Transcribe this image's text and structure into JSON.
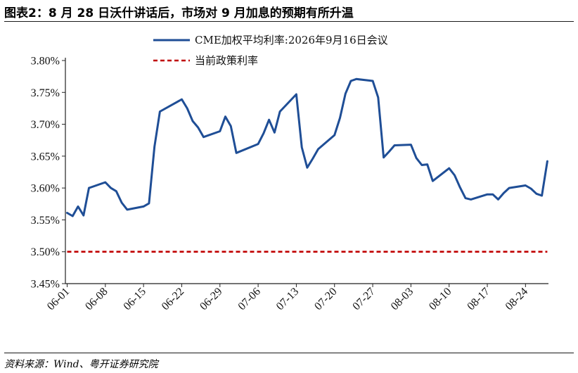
{
  "header": {
    "title": "图表2：8 月 28 日沃什讲话后，市场对 9 月加息的预期有所升温"
  },
  "footer": {
    "source": "资料来源：Wind、粤开证券研究院"
  },
  "colors": {
    "cme_line": "#1f4e96",
    "policy_line": "#c00000",
    "axis": "#222222"
  },
  "chart_data": {
    "type": "line",
    "title": "",
    "xlabel": "",
    "ylabel": "",
    "ylim": [
      3.45,
      3.8
    ],
    "yticks": [
      3.45,
      3.5,
      3.55,
      3.6,
      3.65,
      3.7,
      3.75,
      3.8
    ],
    "ytick_labels": [
      "3.45%",
      "3.50%",
      "3.55%",
      "3.60%",
      "3.65%",
      "3.70%",
      "3.75%",
      "3.80%"
    ],
    "xtick_labels": [
      "06-01",
      "06-08",
      "06-15",
      "06-22",
      "06-29",
      "07-06",
      "07-13",
      "07-20",
      "07-27",
      "08-03",
      "08-10",
      "08-17",
      "08-24"
    ],
    "legend_position": "top-center",
    "grid": false,
    "series": [
      {
        "name": "CME加权平均利率:2026年9月16日会议",
        "style": "solid",
        "x": [
          "06-01",
          "06-02",
          "06-03",
          "06-04",
          "06-05",
          "06-08",
          "06-09",
          "06-10",
          "06-11",
          "06-12",
          "06-15",
          "06-16",
          "06-17",
          "06-18",
          "06-22",
          "06-23",
          "06-24",
          "06-25",
          "06-26",
          "06-29",
          "06-30",
          "07-01",
          "07-02",
          "07-06",
          "07-07",
          "07-08",
          "07-09",
          "07-10",
          "07-13",
          "07-14",
          "07-15",
          "07-16",
          "07-17",
          "07-20",
          "07-21",
          "07-22",
          "07-23",
          "07-24",
          "07-27",
          "07-28",
          "07-29",
          "07-30",
          "07-31",
          "08-03",
          "08-04",
          "08-05",
          "08-06",
          "08-07",
          "08-10",
          "08-11",
          "08-12",
          "08-13",
          "08-14",
          "08-17",
          "08-18",
          "08-19",
          "08-20",
          "08-21",
          "08-24",
          "08-25",
          "08-26",
          "08-27",
          "08-28"
        ],
        "values": [
          3.561,
          3.556,
          3.571,
          3.557,
          3.6,
          3.609,
          3.6,
          3.595,
          3.577,
          3.566,
          3.571,
          3.576,
          3.665,
          3.72,
          3.739,
          3.725,
          3.705,
          3.695,
          3.68,
          3.689,
          3.712,
          3.697,
          3.655,
          3.669,
          3.686,
          3.707,
          3.687,
          3.72,
          3.747,
          3.664,
          3.632,
          3.646,
          3.661,
          3.683,
          3.71,
          3.748,
          3.768,
          3.771,
          3.768,
          3.742,
          3.648,
          3.657,
          3.667,
          3.668,
          3.647,
          3.636,
          3.637,
          3.611,
          3.631,
          3.62,
          3.601,
          3.584,
          3.582,
          3.59,
          3.59,
          3.582,
          3.592,
          3.6,
          3.604,
          3.599,
          3.591,
          3.588,
          3.642
        ]
      },
      {
        "name": "当前政策利率",
        "style": "dashed",
        "x": [
          "06-01",
          "08-28"
        ],
        "values": [
          3.5,
          3.5
        ]
      }
    ]
  }
}
